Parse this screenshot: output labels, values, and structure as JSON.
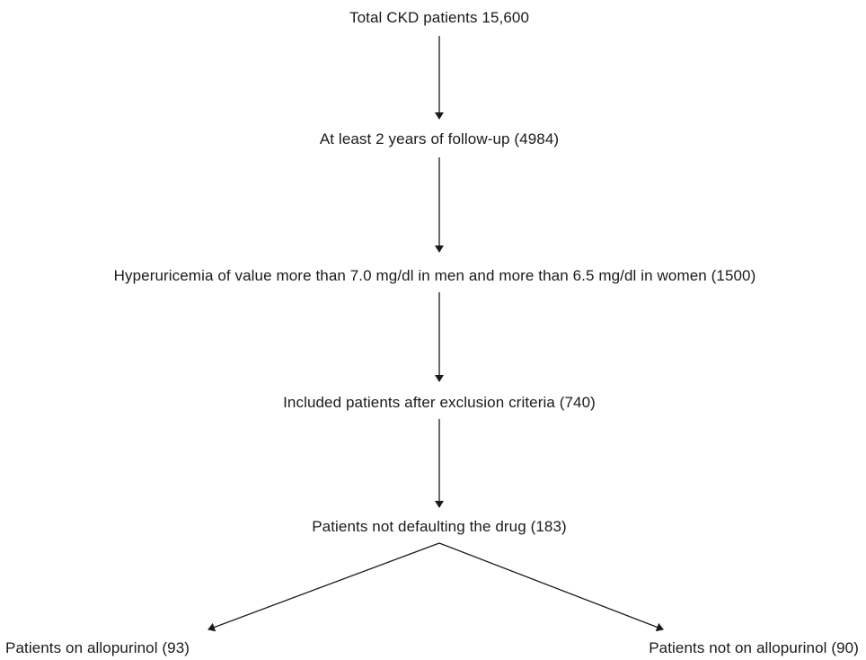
{
  "flowchart": {
    "steps": [
      {
        "label": "Total CKD patients 15,600"
      },
      {
        "label": "At least 2 years of follow-up (4984)"
      },
      {
        "label": "Hyperuricemia of value more than 7.0 mg/dl in men and more than 6.5 mg/dl in women (1500)"
      },
      {
        "label": "Included patients after exclusion criteria (740)"
      },
      {
        "label": "Patients not defaulting the drug (183)"
      }
    ],
    "branches": [
      {
        "label": "Patients on allopurinol (93)"
      },
      {
        "label": "Patients not on allopurinol (90)"
      }
    ]
  }
}
